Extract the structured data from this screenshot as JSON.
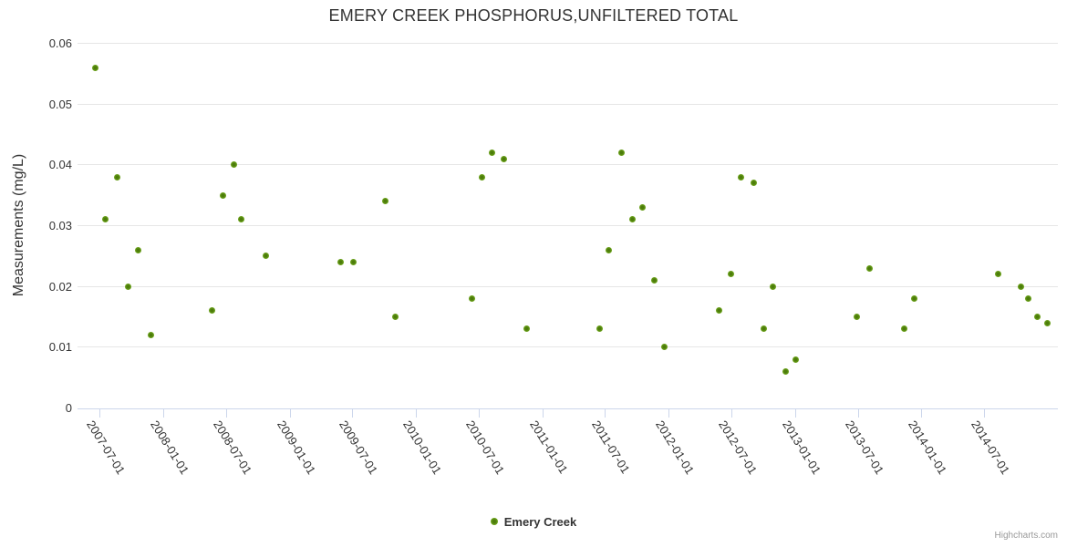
{
  "credits": "Highcharts.com",
  "colors": {
    "marker_green": "#79b226",
    "marker_green_dark": "#4c7c0a",
    "grid": "#e6e6e6",
    "axis_line": "#ccd6eb",
    "text": "#333333",
    "credits_text": "#999999"
  },
  "chart_data": {
    "type": "scatter",
    "title": "EMERY CREEK PHOSPHORUS,UNFILTERED TOTAL",
    "xlabel": "",
    "ylabel": "Measurements (mg/L)",
    "ylim": [
      0,
      0.06
    ],
    "grid": true,
    "legend_position": "bottom-center",
    "y_ticks": [
      0,
      0.01,
      0.02,
      0.03,
      0.04,
      0.05,
      0.06
    ],
    "y_tick_labels": [
      "0",
      "0.01",
      "0.02",
      "0.03",
      "0.04",
      "0.05",
      "0.06"
    ],
    "x_range": [
      "2007-04-29",
      "2015-01-30"
    ],
    "x_tick_labels": [
      "2007-07-01",
      "2008-01-01",
      "2008-07-01",
      "2009-01-01",
      "2009-07-01",
      "2010-01-01",
      "2010-07-01",
      "2011-01-01",
      "2011-07-01",
      "2012-01-01",
      "2012-07-01",
      "2013-01-01",
      "2013-07-01",
      "2014-01-01",
      "2014-07-01"
    ],
    "series": [
      {
        "name": "Emery Creek",
        "color": "#79b226",
        "points": [
          {
            "date": "2007-06-20",
            "value": 0.056
          },
          {
            "date": "2007-07-19",
            "value": 0.031
          },
          {
            "date": "2007-08-22",
            "value": 0.038
          },
          {
            "date": "2007-09-23",
            "value": 0.02
          },
          {
            "date": "2007-10-20",
            "value": 0.026
          },
          {
            "date": "2007-11-26",
            "value": 0.012
          },
          {
            "date": "2008-05-21",
            "value": 0.016
          },
          {
            "date": "2008-06-23",
            "value": 0.035
          },
          {
            "date": "2008-07-25",
            "value": 0.04
          },
          {
            "date": "2008-08-15",
            "value": 0.031
          },
          {
            "date": "2008-10-25",
            "value": 0.025
          },
          {
            "date": "2009-05-28",
            "value": 0.024
          },
          {
            "date": "2009-07-04",
            "value": 0.024
          },
          {
            "date": "2009-10-04",
            "value": 0.034
          },
          {
            "date": "2009-11-02",
            "value": 0.015
          },
          {
            "date": "2010-06-12",
            "value": 0.018
          },
          {
            "date": "2010-07-11",
            "value": 0.038
          },
          {
            "date": "2010-08-09",
            "value": 0.042
          },
          {
            "date": "2010-09-12",
            "value": 0.041
          },
          {
            "date": "2010-11-17",
            "value": 0.013
          },
          {
            "date": "2011-06-16",
            "value": 0.013
          },
          {
            "date": "2011-07-12",
            "value": 0.026
          },
          {
            "date": "2011-08-18",
            "value": 0.042
          },
          {
            "date": "2011-09-19",
            "value": 0.031
          },
          {
            "date": "2011-10-18",
            "value": 0.033
          },
          {
            "date": "2011-11-21",
            "value": 0.021
          },
          {
            "date": "2011-12-20",
            "value": 0.01
          },
          {
            "date": "2012-05-26",
            "value": 0.016
          },
          {
            "date": "2012-06-29",
            "value": 0.022
          },
          {
            "date": "2012-07-28",
            "value": 0.038
          },
          {
            "date": "2012-09-03",
            "value": 0.037
          },
          {
            "date": "2012-10-02",
            "value": 0.013
          },
          {
            "date": "2012-10-28",
            "value": 0.02
          },
          {
            "date": "2012-12-04",
            "value": 0.006
          },
          {
            "date": "2013-01-02",
            "value": 0.008
          },
          {
            "date": "2013-06-28",
            "value": 0.015
          },
          {
            "date": "2013-08-04",
            "value": 0.023
          },
          {
            "date": "2013-11-12",
            "value": 0.013
          },
          {
            "date": "2013-12-11",
            "value": 0.018
          },
          {
            "date": "2014-08-10",
            "value": 0.022
          },
          {
            "date": "2014-10-15",
            "value": 0.02
          },
          {
            "date": "2014-11-05",
            "value": 0.018
          },
          {
            "date": "2014-12-01",
            "value": 0.015
          },
          {
            "date": "2014-12-30",
            "value": 0.014
          }
        ]
      }
    ]
  }
}
